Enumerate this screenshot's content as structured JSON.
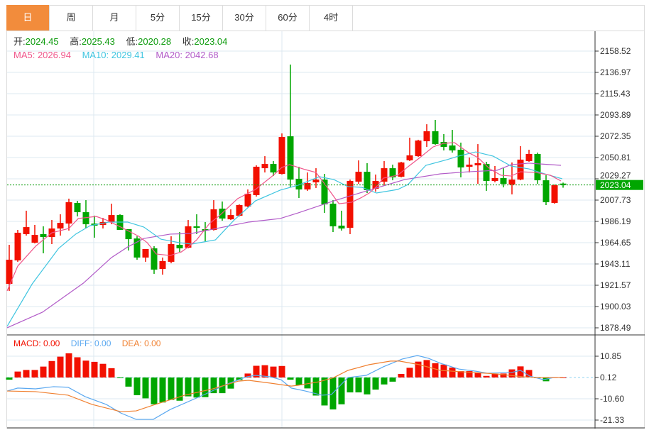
{
  "tabs": [
    {
      "label": "日",
      "active": true
    },
    {
      "label": "周"
    },
    {
      "label": "月"
    },
    {
      "label": "5分"
    },
    {
      "label": "15分"
    },
    {
      "label": "30分"
    },
    {
      "label": "60分"
    },
    {
      "label": "4时"
    }
  ],
  "ohlc_info": {
    "open_label": "开:",
    "open": "2024.45",
    "high_label": "高:",
    "high": "2025.43",
    "low_label": "低:",
    "low": "2020.28",
    "close_label": "收:",
    "close": "2023.04"
  },
  "ma_info": {
    "ma5": "MA5: 2026.94",
    "ma10": "MA10: 2029.41",
    "ma20": "MA20: 2042.68"
  },
  "macd_info": {
    "macd": "MACD: 0.00",
    "diff": "DIFF: 0.00",
    "dea": "DEA: 0.00"
  },
  "current_price": "2023.04",
  "colors": {
    "up": "#f21000",
    "down": "#00a600",
    "ma5": "#f0558a",
    "ma10": "#3fc5e0",
    "ma20": "#b25bc8",
    "diff": "#5aa8f0",
    "dea": "#f08030",
    "accent": "#f28c3c"
  },
  "chart_data": [
    {
      "type": "candlestick",
      "title": "",
      "price_axis_ticks": [
        "2158.52",
        "2136.97",
        "2115.43",
        "2093.89",
        "2072.35",
        "2050.81",
        "2029.27",
        "2007.73",
        "1986.19",
        "1964.65",
        "1943.11",
        "1921.57",
        "1900.03",
        "1878.49"
      ],
      "ylim": [
        1878.49,
        2158.52
      ],
      "candles_ochl_note": "each candle = [open, close, high, low]",
      "candles": [
        [
          1923.0,
          1947.4,
          1962.5,
          1915.8
        ],
        [
          1946.7,
          1974.7,
          1977.6,
          1945.3
        ],
        [
          1973.3,
          1980.4,
          1997.0,
          1971.8
        ],
        [
          1964.6,
          1972.5,
          1982.6,
          1963.9
        ],
        [
          1973.3,
          1970.4,
          1981.2,
          1953.9
        ],
        [
          1970.4,
          1979.0,
          1987.6,
          1963.2
        ],
        [
          1979.0,
          1984.7,
          1993.4,
          1971.8
        ],
        [
          1984.0,
          2005.6,
          2009.2,
          1976.9
        ],
        [
          2004.9,
          1995.5,
          2007.0,
          1991.2
        ],
        [
          1995.5,
          1983.3,
          2007.7,
          1979.0
        ],
        [
          1984.0,
          1981.9,
          1992.0,
          1969.7
        ],
        [
          1982.6,
          1985.5,
          1989.8,
          1979.0
        ],
        [
          1985.5,
          1992.6,
          2004.1,
          1983.3
        ],
        [
          1992.6,
          1977.6,
          1993.4,
          1977.6
        ],
        [
          1978.3,
          1968.2,
          1978.3,
          1956.7
        ],
        [
          1968.9,
          1949.6,
          1971.1,
          1947.4
        ],
        [
          1949.6,
          1958.2,
          1958.2,
          1945.3
        ],
        [
          1958.9,
          1937.4,
          1961.1,
          1933.1
        ],
        [
          1938.1,
          1946.0,
          1949.6,
          1932.3
        ],
        [
          1945.3,
          1963.2,
          1971.1,
          1943.8
        ],
        [
          1962.5,
          1958.9,
          1975.4,
          1955.3
        ],
        [
          1959.6,
          1981.2,
          1987.6,
          1958.9
        ],
        [
          1981.2,
          1979.7,
          1993.4,
          1973.3
        ],
        [
          1978.3,
          1976.9,
          1985.5,
          1966.1
        ],
        [
          1977.6,
          1998.4,
          2007.7,
          1976.9
        ],
        [
          1999.1,
          1989.1,
          2006.3,
          1986.9
        ],
        [
          1988.3,
          1992.6,
          1998.4,
          1987.6
        ],
        [
          1991.9,
          2002.7,
          2003.4,
          1991.2
        ],
        [
          2001.3,
          2014.2,
          2018.5,
          2000.5
        ],
        [
          2012.8,
          2041.5,
          2042.9,
          2011.3
        ],
        [
          2040.0,
          2044.3,
          2052.2,
          2035.7
        ],
        [
          2044.3,
          2035.7,
          2047.2,
          2032.1
        ],
        [
          2034.3,
          2071.6,
          2075.2,
          2033.6
        ],
        [
          2072.3,
          2028.5,
          2144.9,
          2020.6
        ],
        [
          2029.3,
          2018.5,
          2041.5,
          2009.9
        ],
        [
          2018.5,
          2025.0,
          2035.7,
          2017.1
        ],
        [
          2025.7,
          2028.5,
          2040.0,
          2020.0
        ],
        [
          2028.5,
          2003.4,
          2034.3,
          1994.8
        ],
        [
          2004.1,
          1981.2,
          2007.7,
          1975.4
        ],
        [
          1981.9,
          1979.0,
          1997.0,
          1976.9
        ],
        [
          1979.7,
          2027.1,
          2028.5,
          1973.3
        ],
        [
          2026.4,
          2036.4,
          2047.9,
          2024.2
        ],
        [
          2036.4,
          2017.8,
          2045.1,
          2014.9
        ],
        [
          2019.2,
          2027.1,
          2033.6,
          2016.3
        ],
        [
          2026.4,
          2040.0,
          2047.2,
          2022.1
        ],
        [
          2040.0,
          2030.7,
          2043.6,
          2027.8
        ],
        [
          2031.4,
          2045.8,
          2046.5,
          2030.7
        ],
        [
          2048.0,
          2053.0,
          2070.9,
          2047.2
        ],
        [
          2052.2,
          2068.0,
          2068.8,
          2051.5
        ],
        [
          2067.3,
          2077.4,
          2084.5,
          2061.6
        ],
        [
          2077.4,
          2064.4,
          2088.9,
          2063.7
        ],
        [
          2066.6,
          2061.6,
          2074.5,
          2058.0
        ],
        [
          2063.0,
          2058.0,
          2078.8,
          2055.8
        ],
        [
          2058.7,
          2040.8,
          2065.9,
          2030.7
        ],
        [
          2041.5,
          2043.6,
          2050.8,
          2035.7
        ],
        [
          2042.9,
          2045.1,
          2064.4,
          2024.2
        ],
        [
          2044.3,
          2027.1,
          2046.5,
          2017.1
        ],
        [
          2027.1,
          2030.0,
          2042.2,
          2025.7
        ],
        [
          2030.0,
          2024.2,
          2040.0,
          2020.6
        ],
        [
          2023.5,
          2028.5,
          2045.8,
          2013.5
        ],
        [
          2028.5,
          2048.7,
          2062.3,
          2027.8
        ],
        [
          2047.2,
          2054.4,
          2058.7,
          2046.5
        ],
        [
          2054.4,
          2027.8,
          2055.8,
          2024.2
        ],
        [
          2027.8,
          2005.6,
          2032.9,
          2002.7
        ],
        [
          2004.9,
          2022.8,
          2023.5,
          2004.1
        ],
        [
          2024.45,
          2023.04,
          2025.43,
          2020.28
        ]
      ],
      "ma_series_note": "points are [candle_index, price]",
      "ma5": [
        [
          0.75,
          1915.8
        ],
        [
          2,
          1941.0
        ],
        [
          4.1,
          1961.1
        ],
        [
          6,
          1974.7
        ],
        [
          8,
          1979.0
        ],
        [
          9.1,
          1989.1
        ],
        [
          11.2,
          1991.2
        ],
        [
          12.4,
          1987.6
        ],
        [
          14.1,
          1980.4
        ],
        [
          16.2,
          1971.1
        ],
        [
          17.2,
          1964.6
        ],
        [
          18.25,
          1953.2
        ],
        [
          19.9,
          1951.7
        ],
        [
          21.2,
          1955.3
        ],
        [
          22,
          1960.3
        ],
        [
          23,
          1967.5
        ],
        [
          24.5,
          1984.0
        ],
        [
          25.75,
          1992.6
        ],
        [
          27.8,
          2009.2
        ],
        [
          29.9,
          2018.5
        ],
        [
          32,
          2032.9
        ],
        [
          33,
          2040.8
        ],
        [
          33.9,
          2043.6
        ],
        [
          35.75,
          2038.6
        ],
        [
          37,
          2035.7
        ],
        [
          38.25,
          2021.4
        ],
        [
          39.7,
          2004.1
        ],
        [
          41.2,
          2005.6
        ],
        [
          42.4,
          2010.6
        ],
        [
          43.25,
          2014.9
        ],
        [
          44.1,
          2021.4
        ],
        [
          44.9,
          2030.0
        ],
        [
          46.6,
          2032.9
        ],
        [
          47.8,
          2041.5
        ],
        [
          49.1,
          2050.1
        ],
        [
          50.75,
          2061.6
        ],
        [
          52,
          2065.2
        ],
        [
          53.25,
          2065.9
        ],
        [
          54.9,
          2055.8
        ],
        [
          56,
          2050.8
        ],
        [
          57.4,
          2039.3
        ],
        [
          58.7,
          2032.9
        ],
        [
          59.9,
          2032.1
        ],
        [
          61,
          2036.4
        ],
        [
          62.8,
          2035.7
        ],
        [
          64.5,
          2032.9
        ],
        [
          65.75,
          2027.1
        ]
      ],
      "ma10": [
        [
          0.75,
          1880.0
        ],
        [
          3.7,
          1923.0
        ],
        [
          6.8,
          1958.9
        ],
        [
          8.8,
          1973.3
        ],
        [
          10.5,
          1981.9
        ],
        [
          12.7,
          1985.5
        ],
        [
          14.9,
          1985.5
        ],
        [
          16.8,
          1980.4
        ],
        [
          18.8,
          1968.2
        ],
        [
          21,
          1964.6
        ],
        [
          22.4,
          1963.2
        ],
        [
          25.2,
          1967.5
        ],
        [
          27.4,
          1987.6
        ],
        [
          29.9,
          2007.0
        ],
        [
          32.8,
          2017.8
        ],
        [
          34.9,
          2022.8
        ],
        [
          37.4,
          2031.4
        ],
        [
          39.1,
          2028.5
        ],
        [
          40.75,
          2021.4
        ],
        [
          42.4,
          2020.6
        ],
        [
          44.1,
          2014.9
        ],
        [
          46.6,
          2018.5
        ],
        [
          47.8,
          2023.5
        ],
        [
          49.9,
          2042.9
        ],
        [
          52.4,
          2048.7
        ],
        [
          53.7,
          2052.2
        ],
        [
          55.75,
          2056.5
        ],
        [
          57.8,
          2052.2
        ],
        [
          59.9,
          2042.2
        ],
        [
          62,
          2039.3
        ],
        [
          64.1,
          2033.6
        ],
        [
          65.9,
          2029.3
        ]
      ],
      "ma20": [
        [
          0.75,
          1878.5
        ],
        [
          4.9,
          1894.3
        ],
        [
          9.7,
          1923.7
        ],
        [
          13,
          1949.6
        ],
        [
          14.9,
          1960.3
        ],
        [
          16.8,
          1968.9
        ],
        [
          19.9,
          1973.3
        ],
        [
          22.4,
          1974.0
        ],
        [
          29.1,
          1985.5
        ],
        [
          32.8,
          1989.1
        ],
        [
          34.9,
          1994.8
        ],
        [
          39.1,
          2007.0
        ],
        [
          43.25,
          2017.8
        ],
        [
          47.4,
          2028.5
        ],
        [
          51.6,
          2034.3
        ],
        [
          54.9,
          2036.4
        ],
        [
          58.25,
          2037.9
        ],
        [
          59.9,
          2043.6
        ],
        [
          62,
          2045.1
        ],
        [
          65.75,
          2042.9
        ]
      ]
    },
    {
      "type": "bar",
      "title": "MACD",
      "macd_axis_ticks": [
        "10.85",
        "0.12",
        "-10.60",
        "-21.33"
      ],
      "ylim": [
        -21.33,
        10.85
      ],
      "zero": 0.12,
      "histogram": [
        -1.1,
        3.0,
        3.8,
        3.8,
        5.5,
        8.3,
        10.5,
        12.2,
        10.2,
        8.5,
        7.9,
        6.9,
        4.7,
        -0.3,
        -4.6,
        -8.9,
        -10.5,
        -13.5,
        -12.6,
        -11.3,
        -11.7,
        -9.5,
        -10.1,
        -9.9,
        -7.9,
        -7.9,
        -5.6,
        -1.3,
        2.0,
        5.9,
        6.2,
        5.5,
        5.8,
        -1.1,
        -3.9,
        -5.5,
        -9.1,
        -14.1,
        -16.1,
        -13.5,
        -7.5,
        -7.5,
        -8.5,
        -6.1,
        -3.5,
        -2.1,
        1.8,
        4.9,
        8.0,
        8.8,
        7.2,
        6.5,
        5.0,
        3.2,
        3.2,
        2.3,
        0.8,
        1.8,
        2.0,
        4.1,
        5.6,
        3.8,
        -0.2,
        -1.9,
        0.1,
        0.0
      ],
      "diff": [
        [
          0.75,
          -6.7
        ],
        [
          2,
          -5.2
        ],
        [
          4.1,
          -5.6
        ],
        [
          6.2,
          -4.5
        ],
        [
          7.9,
          -4.8
        ],
        [
          9.9,
          -9.5
        ],
        [
          12.4,
          -13.5
        ],
        [
          14.1,
          -17.8
        ],
        [
          15.9,
          -21
        ],
        [
          17.9,
          -21
        ],
        [
          19.9,
          -16
        ],
        [
          21.6,
          -12.8
        ],
        [
          24.1,
          -8.1
        ],
        [
          26.6,
          -3.1
        ],
        [
          28.9,
          0.5
        ],
        [
          29.9,
          1.2
        ],
        [
          31.6,
          0.5
        ],
        [
          32.9,
          -1
        ],
        [
          34.1,
          -5.2
        ],
        [
          35.75,
          -6.7
        ],
        [
          37.7,
          -8.8
        ],
        [
          38.8,
          -8.5
        ],
        [
          40.75,
          0.1
        ],
        [
          42.9,
          1.2
        ],
        [
          44.9,
          5.5
        ],
        [
          47.1,
          9.4
        ],
        [
          48.9,
          11.2
        ],
        [
          50.2,
          9.8
        ],
        [
          51.6,
          7.3
        ],
        [
          53.75,
          4.4
        ],
        [
          55.75,
          3.3
        ],
        [
          57.1,
          2.3
        ],
        [
          59.9,
          2.6
        ],
        [
          61,
          3.7
        ],
        [
          62.1,
          0.8
        ],
        [
          63.7,
          -1
        ],
        [
          64.9,
          0.1
        ],
        [
          66,
          0.1
        ]
      ],
      "dea": [
        [
          0.75,
          -6.7
        ],
        [
          4.1,
          -7
        ],
        [
          7.9,
          -8.8
        ],
        [
          10.75,
          -13.5
        ],
        [
          14.1,
          -17.1
        ],
        [
          15.9,
          -16.7
        ],
        [
          17.9,
          -13.8
        ],
        [
          21.6,
          -8.8
        ],
        [
          24.9,
          -5.6
        ],
        [
          27.9,
          -1.7
        ],
        [
          29.1,
          -1.3
        ],
        [
          31.6,
          -2.7
        ],
        [
          34.1,
          -4.2
        ],
        [
          34.9,
          -3.8
        ],
        [
          37.4,
          -2.0
        ],
        [
          39.1,
          0.1
        ],
        [
          40.75,
          3.7
        ],
        [
          43.25,
          6.6
        ],
        [
          45.75,
          8.4
        ],
        [
          46.8,
          8.4
        ],
        [
          49.1,
          6.6
        ],
        [
          51.6,
          3.7
        ],
        [
          54.1,
          3.0
        ],
        [
          58.25,
          1.9
        ],
        [
          61.25,
          0.5
        ],
        [
          63,
          0.1
        ],
        [
          66,
          0.1
        ]
      ]
    }
  ]
}
